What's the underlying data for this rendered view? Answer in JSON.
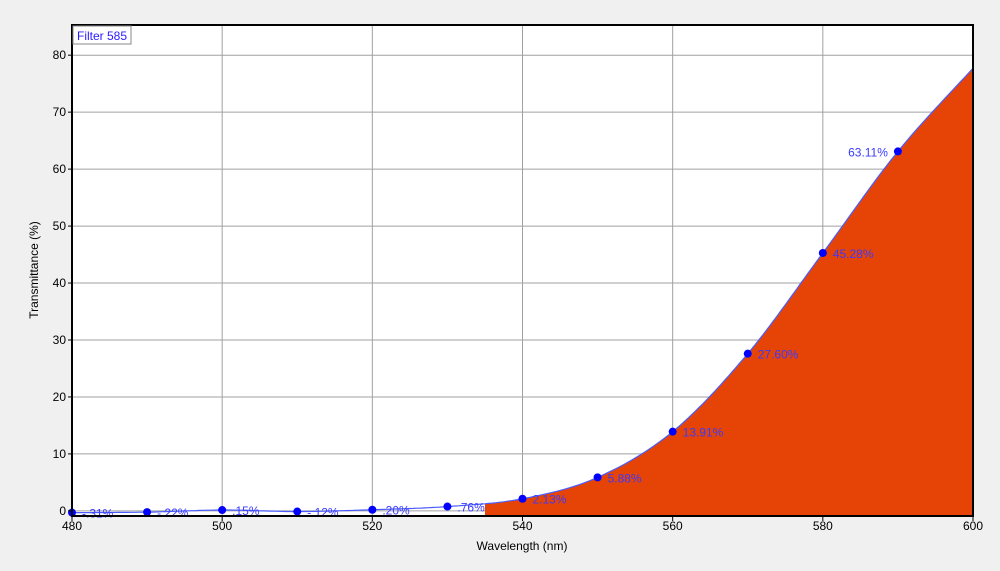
{
  "chart_data": {
    "type": "area",
    "legend": {
      "label": "Filter 585",
      "placement": "top-left"
    },
    "xlabel": "Wavelength (nm)",
    "ylabel": "Transmittance (%)",
    "xlim": [
      480,
      600
    ],
    "ylim": [
      -0.9,
      85.3
    ],
    "xticks": [
      480,
      500,
      520,
      540,
      560,
      580,
      600
    ],
    "yticks": [
      0,
      10,
      20,
      30,
      40,
      50,
      60,
      70,
      80
    ],
    "grid": true,
    "series": [
      {
        "x": [
          480,
          490,
          500,
          510,
          520,
          530,
          540,
          550,
          560,
          570,
          580,
          590
        ],
        "y": [
          -0.31,
          -0.22,
          0.15,
          -0.12,
          0.2,
          0.76,
          2.13,
          5.88,
          13.91,
          27.6,
          45.28,
          63.11
        ],
        "labels": [
          "-.31%",
          "-.22%",
          ".15%",
          "-.12%",
          ".20%",
          ".76%",
          "2.13%",
          "5.88%",
          "13.91%",
          "27.60%",
          "45.28%",
          "63.11%"
        ]
      }
    ],
    "curve_end": {
      "x": 600,
      "y": 77.7
    },
    "fill_start_x": 535,
    "colors": {
      "fill": "#e64406",
      "line": "#4a5cff",
      "marker": "#0000ff",
      "label": "#3a3aff"
    }
  }
}
